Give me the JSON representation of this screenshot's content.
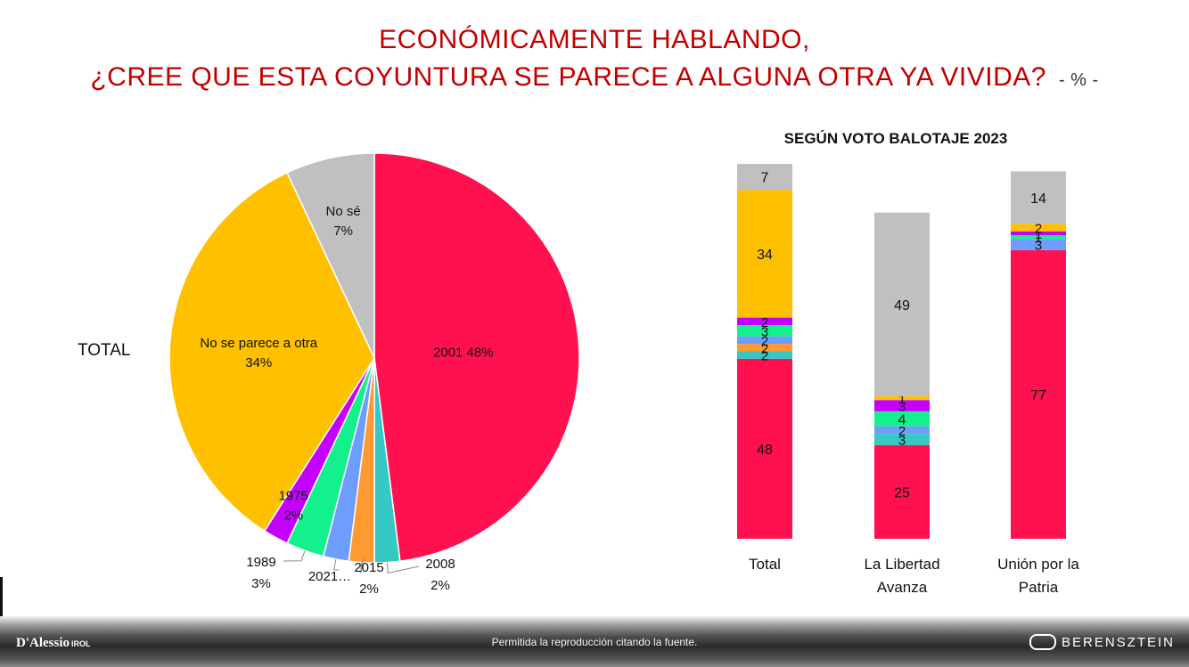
{
  "header": {
    "title_line1": "ECONÓMICAMENTE HABLANDO,",
    "title_line2": "¿CREE QUE ESTA COYUNTURA SE PARECE A ALGUNA OTRA YA VIVIDA?",
    "unit": "- % -"
  },
  "total_label": "TOTAL",
  "subtitle": "SEGÚN VOTO BALOTAJE 2023",
  "footer": {
    "left_brand": "D'Alessio",
    "left_brand_suffix": "IROL",
    "center_text": "Permitida la reproducción citando la fuente.",
    "right_brand": "BERENSZTEIN"
  },
  "colors": {
    "2001": "#ff1150",
    "2008": "#36c8c3",
    "2015": "#ff9a33",
    "2021": "#6f9cff",
    "1989": "#14f08c",
    "1975": "#c400ff",
    "otra": "#ffc000",
    "nose": "#c0c0c0"
  },
  "chart_data": [
    {
      "type": "pie",
      "title": "TOTAL",
      "slices": [
        {
          "key": "2001",
          "label": "2001 48%",
          "value": 48
        },
        {
          "key": "2008",
          "label": "2008",
          "pct": "2%",
          "value": 2
        },
        {
          "key": "2015",
          "label": "2015",
          "pct": "2%",
          "value": 2
        },
        {
          "key": "2021",
          "label": "2021…",
          "value": 2
        },
        {
          "key": "1989",
          "label": "1989",
          "pct": "3%",
          "value": 3
        },
        {
          "key": "1975",
          "label": "1975",
          "pct": "2%",
          "value": 2
        },
        {
          "key": "otra",
          "label": "No se parece a otra",
          "pct": "34%",
          "value": 34
        },
        {
          "key": "nose",
          "label": "No sé",
          "pct": "7%",
          "value": 7
        }
      ]
    },
    {
      "type": "bar",
      "stacked": true,
      "title": "SEGÚN VOTO BALOTAJE 2023",
      "categories": [
        "Total",
        "La Libertad Avanza",
        "Unión por la Patria"
      ],
      "category_lines": [
        [
          "Total"
        ],
        [
          "La Libertad",
          "Avanza"
        ],
        [
          "Unión por la",
          "Patria"
        ]
      ],
      "series": [
        {
          "key": "2001",
          "values": [
            48,
            25,
            77
          ]
        },
        {
          "key": "2008",
          "values": [
            2,
            3,
            0
          ]
        },
        {
          "key": "2015",
          "values": [
            2,
            0,
            0
          ]
        },
        {
          "key": "2021",
          "values": [
            2,
            2,
            3
          ]
        },
        {
          "key": "1989",
          "values": [
            3,
            4,
            1
          ]
        },
        {
          "key": "1975",
          "values": [
            2,
            3,
            1
          ]
        },
        {
          "key": "otra",
          "values": [
            34,
            1,
            2
          ]
        },
        {
          "key": "nose",
          "values": [
            7,
            49,
            14
          ]
        }
      ],
      "note_series": "segments listed bottom-to-top"
    }
  ]
}
